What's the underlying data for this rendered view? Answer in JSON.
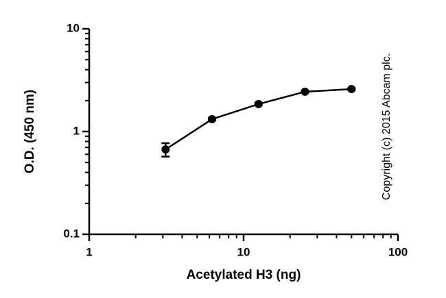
{
  "chart_data": {
    "type": "line",
    "x_label": "Acetylated H3 (ng)",
    "y_label": "O.D. (450 nm)",
    "annotation": "Copyright (c) 2015 Abcam plc.",
    "x": [
      3.125,
      6.25,
      12.5,
      25,
      50
    ],
    "series": [
      {
        "name": "Acetylated H3",
        "color": "#000000",
        "values": [
          0.67,
          1.32,
          1.85,
          2.44,
          2.59
        ],
        "errors": [
          0.1,
          0.04,
          0.04,
          0.05,
          0.05
        ]
      }
    ],
    "xscale": "log",
    "yscale": "log",
    "xlim": [
      1,
      100
    ],
    "ylim": [
      0.1,
      10
    ],
    "xticks": [
      1,
      10,
      100
    ],
    "yticks": [
      0.1,
      1,
      10
    ],
    "xminorticks": [
      2,
      3,
      4,
      5,
      6,
      7,
      8,
      9,
      20,
      30,
      40,
      50,
      60,
      70,
      80,
      90
    ],
    "yminorticks": [
      0.2,
      0.3,
      0.4,
      0.5,
      0.6,
      0.7,
      0.8,
      0.9,
      2,
      3,
      4,
      5,
      6,
      7,
      8,
      9
    ]
  }
}
